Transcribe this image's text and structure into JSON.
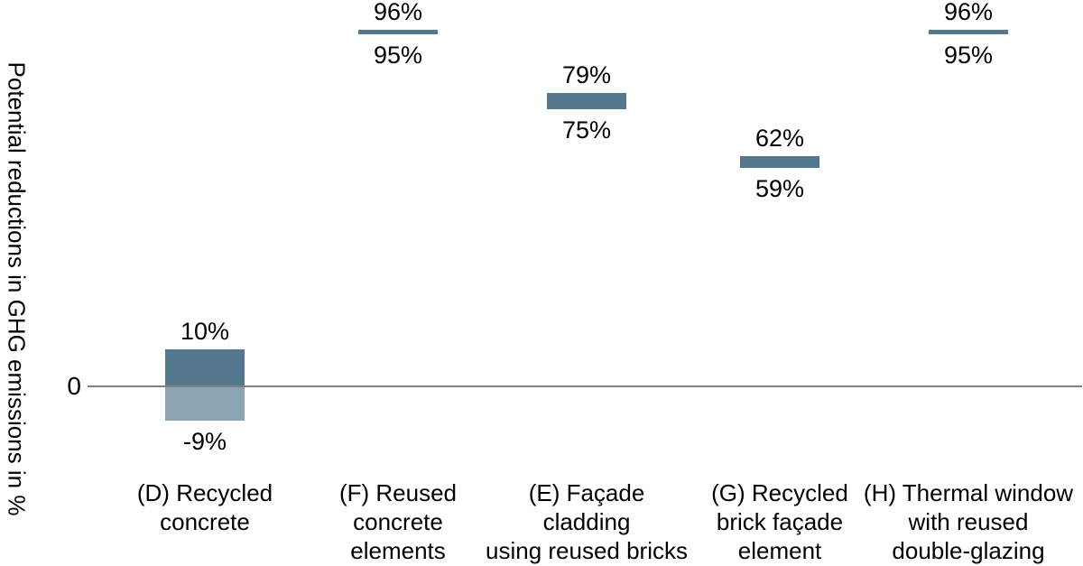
{
  "colors": {
    "bar_positive": "#54798F",
    "bar_negative": "#8CA5B4",
    "zero_line": "#7F7F7F",
    "text": "#000000",
    "background": "#FFFFFF"
  },
  "chart_data": {
    "type": "bar",
    "subtype": "floating-range-bars",
    "title": "",
    "xlabel": "",
    "ylabel": "Potential reductions in GHG emissions in %",
    "zero_tick_label": "0",
    "ylim": [
      -22,
      104
    ],
    "grid": false,
    "legend": false,
    "unit": "%",
    "categories": [
      "(D) Recycled concrete",
      "(F) Reused concrete elements",
      "(E) Façade cladding using reused bricks",
      "(G) Recycled brick façade element",
      "(H) Thermal window with reused double-glazing"
    ],
    "bars": [
      {
        "id": "D",
        "label_lines": [
          "(D) Recycled",
          "concrete"
        ],
        "low": -9,
        "high": 10,
        "low_label": "-9%",
        "high_label": "10%"
      },
      {
        "id": "F",
        "label_lines": [
          "(F) Reused",
          "concrete",
          "elements"
        ],
        "low": 95,
        "high": 96,
        "low_label": "95%",
        "high_label": "96%"
      },
      {
        "id": "E",
        "label_lines": [
          "(E) Façade",
          "cladding",
          "using reused bricks"
        ],
        "low": 75,
        "high": 79,
        "low_label": "75%",
        "high_label": "79%"
      },
      {
        "id": "G",
        "label_lines": [
          "(G) Recycled",
          "brick façade",
          "element"
        ],
        "low": 59,
        "high": 62,
        "low_label": "59%",
        "high_label": "62%"
      },
      {
        "id": "H",
        "label_lines": [
          "(H) Thermal window",
          "with reused",
          "double-glazing"
        ],
        "low": 95,
        "high": 96,
        "low_label": "95%",
        "high_label": "96%"
      }
    ]
  }
}
